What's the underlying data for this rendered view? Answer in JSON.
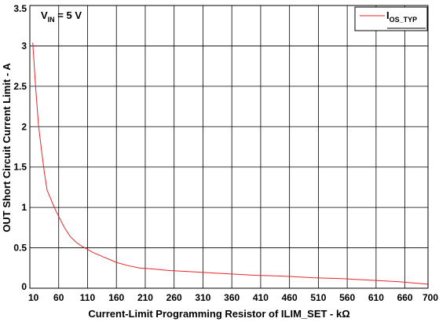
{
  "chart_data": {
    "type": "line",
    "xlabel": "Current-Limit Programming Resistor of ILIM_SET - kΩ",
    "ylabel": "OUT Short Circuit Current Limit - A",
    "xlim": [
      10,
      700
    ],
    "ylim": [
      0,
      3.5
    ],
    "x_ticks": [
      10,
      60,
      110,
      160,
      210,
      260,
      310,
      360,
      410,
      460,
      510,
      560,
      610,
      660,
      700
    ],
    "y_ticks": [
      0,
      0.5,
      1,
      1.5,
      2,
      2.5,
      3,
      3.5
    ],
    "grid": true,
    "legend_position": "top-right",
    "annotation": {
      "main": "V",
      "sub": "IN",
      "rest": " = 5 V"
    },
    "series": [
      {
        "name_main": "I",
        "name_sub": "OS_TYP",
        "color": "#e8262b",
        "x": [
          15,
          20,
          25,
          30,
          35,
          40,
          45,
          50,
          55,
          60,
          70,
          80,
          90,
          100,
          110,
          120,
          130,
          140,
          150,
          160,
          180,
          200,
          220,
          250,
          300,
          350,
          400,
          450,
          500,
          550,
          600,
          650,
          700
        ],
        "y": [
          3.04,
          2.5,
          2.02,
          1.72,
          1.44,
          1.21,
          1.13,
          1.04,
          0.96,
          0.89,
          0.75,
          0.64,
          0.57,
          0.52,
          0.48,
          0.44,
          0.41,
          0.38,
          0.35,
          0.32,
          0.28,
          0.25,
          0.24,
          0.22,
          0.2,
          0.18,
          0.16,
          0.15,
          0.13,
          0.12,
          0.1,
          0.08,
          0.05
        ]
      }
    ]
  }
}
